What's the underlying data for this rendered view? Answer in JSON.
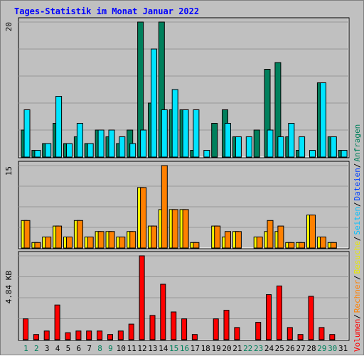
{
  "chart_data": {
    "type": "bar",
    "title": "Tages-Statistik im Monat Januar 2022",
    "categories": [
      "1",
      "2",
      "3",
      "4",
      "5",
      "6",
      "7",
      "8",
      "9",
      "10",
      "11",
      "12",
      "13",
      "14",
      "15",
      "16",
      "17",
      "18",
      "19",
      "20",
      "21",
      "22",
      "23",
      "24",
      "25",
      "26",
      "27",
      "28",
      "29",
      "30",
      "31"
    ],
    "weekend_days": [
      "1",
      "2",
      "8",
      "9",
      "15",
      "16",
      "22",
      "23",
      "29",
      "30"
    ],
    "panels": [
      {
        "name": "top",
        "y_tick_label": "20",
        "ylim": [
          0,
          20
        ],
        "legend": [
          "Anfragen",
          "Dateien"
        ],
        "series": [
          {
            "name": "Anfragen",
            "color": "#00805c",
            "values": [
              4,
              1,
              2,
              5,
              2,
              3,
              2,
              4,
              3,
              2,
              4,
              20,
              8,
              20,
              7,
              7,
              1,
              0,
              5,
              7,
              3,
              0,
              4,
              13,
              14,
              3,
              1,
              0,
              11,
              3,
              1
            ]
          },
          {
            "name": "Dateien",
            "color": "#00e4ff",
            "values": [
              7,
              1,
              2,
              9,
              2,
              5,
              2,
              4,
              4,
              3,
              2,
              4,
              16,
              7,
              10,
              7,
              7,
              1,
              0,
              5,
              3,
              3,
              0,
              4,
              3,
              5,
              3,
              1,
              11,
              3,
              1
            ]
          }
        ]
      },
      {
        "name": "middle",
        "y_tick_label": "15",
        "ylim": [
          0,
          15
        ],
        "legend": [
          "Seiten",
          "Besuche",
          "Rechner"
        ],
        "series": [
          {
            "name": "Besuche",
            "color": "#ffff00",
            "values": [
              5,
              1,
              2,
              4,
              2,
              5,
              2,
              3,
              3,
              2,
              3,
              11,
              4,
              7,
              7,
              7,
              1,
              0,
              4,
              2,
              3,
              0,
              2,
              3,
              3,
              1,
              1,
              6,
              2,
              1,
              0
            ]
          },
          {
            "name": "Rechner",
            "color": "#ff8000",
            "values": [
              5,
              1,
              2,
              4,
              2,
              5,
              2,
              3,
              3,
              2,
              3,
              11,
              4,
              15,
              7,
              7,
              1,
              0,
              4,
              3,
              3,
              0,
              2,
              5,
              4,
              1,
              1,
              6,
              2,
              1,
              0
            ]
          }
        ]
      },
      {
        "name": "bottom",
        "y_tick_label": "4.84 KB",
        "ylim": [
          0,
          4.84
        ],
        "legend": [
          "Volumen"
        ],
        "series": [
          {
            "name": "Volumen",
            "color": "#ff0000",
            "values": [
              1.2,
              0.3,
              0.5,
              2.0,
              0.4,
              0.5,
              0.5,
              0.5,
              0.3,
              0.5,
              0.9,
              4.84,
              1.4,
              3.2,
              1.6,
              1.2,
              0.3,
              0,
              1.2,
              1.7,
              0.7,
              0,
              1.0,
              2.6,
              3.1,
              0.7,
              0.3,
              2.5,
              0.7,
              0.3,
              0
            ]
          }
        ]
      }
    ],
    "grid": true
  },
  "colors": {
    "background": "#c0c0c0",
    "panel_bg": "#c0c0c0",
    "grid": "#999999",
    "title": "#0000ff",
    "weekday_label": "#000000",
    "weekend_label": "#00805c",
    "legend_sep": "#000000",
    "Anfragen": "#00805c",
    "Dateien": "#0040ff",
    "Seiten": "#00c0ff",
    "Besuche": "#e8e800",
    "Rechner": "#ff8000",
    "Volumen": "#ff0000"
  }
}
